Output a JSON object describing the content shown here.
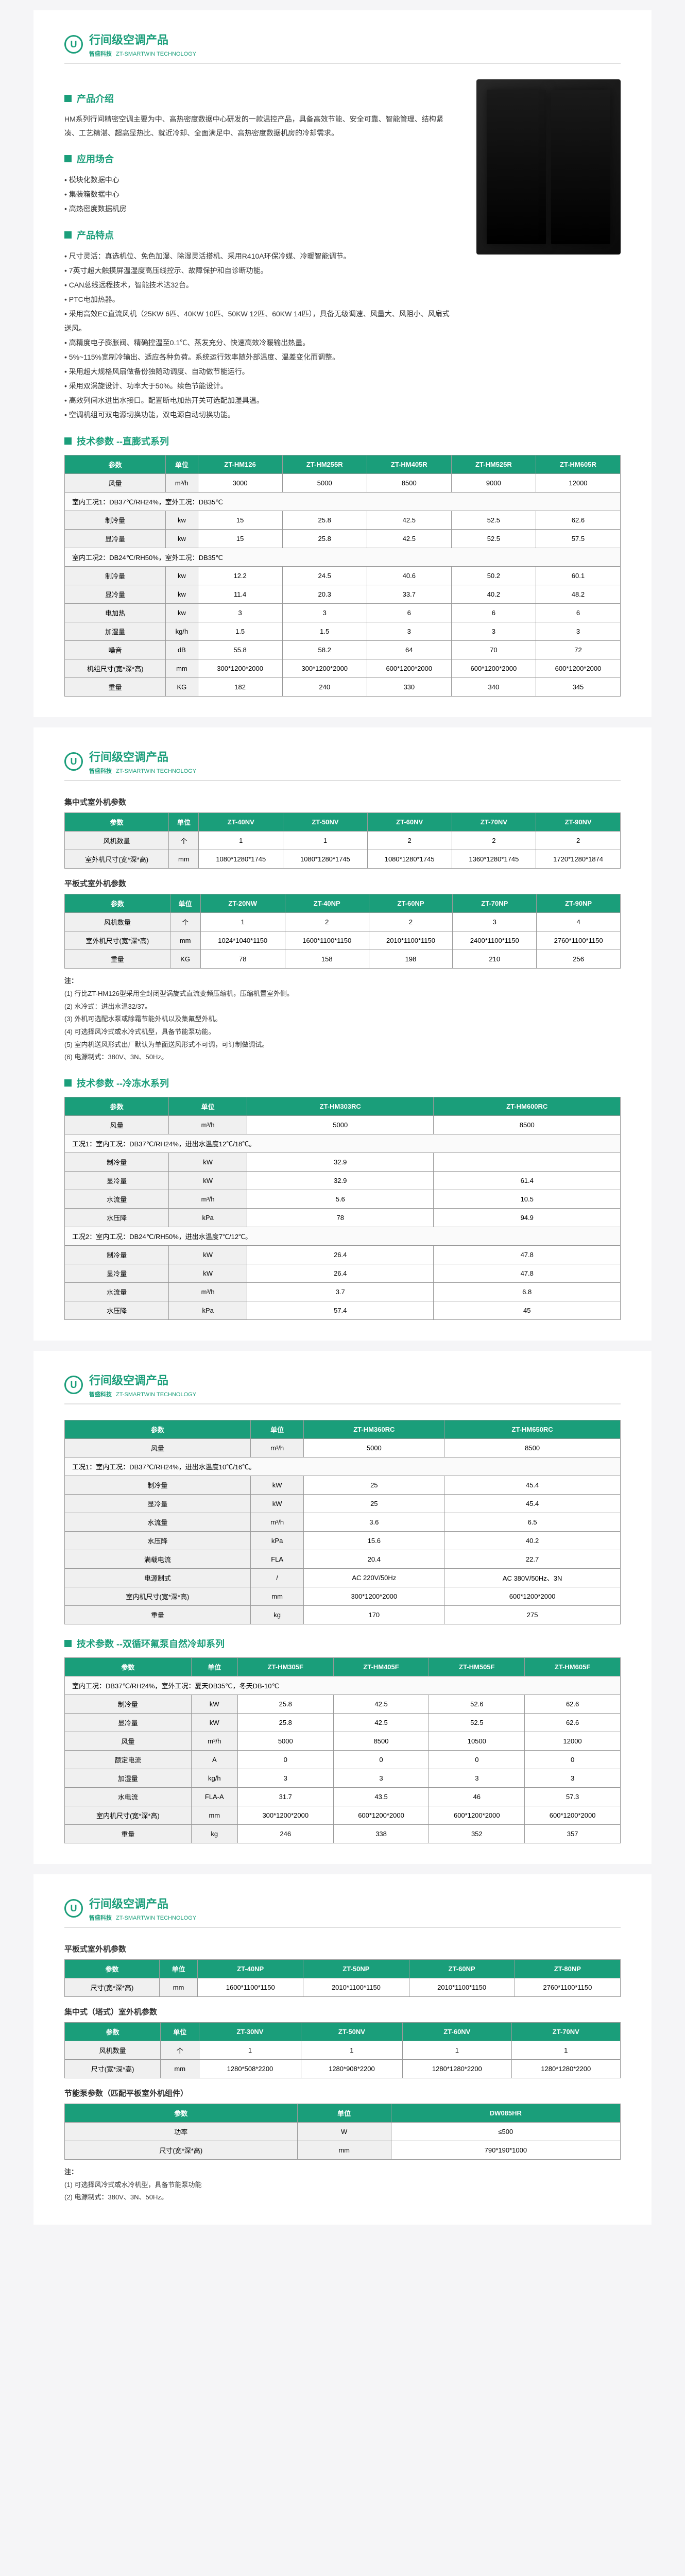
{
  "header": {
    "title": "行间级空调产品",
    "brand_cn": "智盛科技",
    "brand_en": "ZT-SMARTWIN TECHNOLOGY"
  },
  "sections": {
    "intro": {
      "title": "产品介绍",
      "text": "HM系列行间精密空调主要为中、高热密度数据中心研发的一款温控产品，具备高效节能、安全可靠、智能管理、结构紧凑、工艺精湛、超高显热比、就近冷却、全面满足中、高热密度数据机房的冷却需求。"
    },
    "apply": {
      "title": "应用场合",
      "items": [
        "模块化数据中心",
        "集装箱数据中心",
        "高热密度数据机房"
      ]
    },
    "features": {
      "title": "产品特点",
      "items": [
        "尺寸灵活：真选机位、免色加湿、除湿灵活搭机、采用R410A环保冷媒、冷暖智能调节。",
        "7英寸超大触摸屏温湿度高压线控示、故障保护和自诊断功能。",
        "CAN总线远程技术，智能技术达32台。",
        "PTC电加热器。",
        "采用高效EC直流风机（25KW 6匹、40KW 10匹、50KW 12匹、60KW 14匹），具备无级调速、风量大、风阻小、风扇式送风。",
        "高精度电子膨胀阀、精确控温至0.1℃、蒸发充分、快速高效冷暖输出热量。",
        "5%~115%宽制冷输出、适应各种负荷。系统运行效率随外部温度、温差变化而调整。",
        "采用超大规格风扇做备份独随动调度、自动做节能运行。",
        "采用双涡旋设计、功率大于50%。续色节能设计。",
        "高效列间水进出水接口。配置断电加热开关可选配加湿具温。",
        "空调机组可双电源切换功能，双电源自动切换功能。"
      ]
    },
    "spec1": {
      "title": "技术参数 --直膨式系列"
    },
    "spec2": {
      "title": "技术参数 --冷冻水系列"
    },
    "spec3": {
      "title": "技术参数 --双循环氟泵自然冷却系列"
    }
  },
  "table1": {
    "headers": [
      "参数",
      "单位",
      "ZT-HM126",
      "ZT-HM255R",
      "ZT-HM405R",
      "ZT-HM525R",
      "ZT-HM605R"
    ],
    "rows": [
      [
        "风量",
        "m³/h",
        "3000",
        "5000",
        "8500",
        "9000",
        "12000"
      ],
      {
        "cond": "室内工况1：DB37℃/RH24%，室外工况：DB35℃"
      },
      [
        "制冷量",
        "kw",
        "15",
        "25.8",
        "42.5",
        "52.5",
        "62.6"
      ],
      [
        "显冷量",
        "kw",
        "15",
        "25.8",
        "42.5",
        "52.5",
        "57.5"
      ],
      {
        "cond": "室内工况2：DB24℃/RH50%，室外工况：DB35℃"
      },
      [
        "制冷量",
        "kw",
        "12.2",
        "24.5",
        "40.6",
        "50.2",
        "60.1"
      ],
      [
        "显冷量",
        "kw",
        "11.4",
        "20.3",
        "33.7",
        "40.2",
        "48.2"
      ],
      [
        "电加热",
        "kw",
        "3",
        "3",
        "6",
        "6",
        "6"
      ],
      [
        "加湿量",
        "kg/h",
        "1.5",
        "1.5",
        "3",
        "3",
        "3"
      ],
      [
        "噪音",
        "dB",
        "55.8",
        "58.2",
        "64",
        "70",
        "72"
      ],
      [
        "机组尺寸(宽*深*高)",
        "mm",
        "300*1200*2000",
        "300*1200*2000",
        "600*1200*2000",
        "600*1200*2000",
        "600*1200*2000"
      ],
      [
        "重量",
        "KG",
        "182",
        "240",
        "330",
        "340",
        "345"
      ]
    ]
  },
  "outdoor_c": {
    "title": "集中式室外机参数",
    "headers": [
      "参数",
      "单位",
      "ZT-40NV",
      "ZT-50NV",
      "ZT-60NV",
      "ZT-70NV",
      "ZT-90NV"
    ],
    "rows": [
      [
        "风机数量",
        "个",
        "1",
        "1",
        "2",
        "2",
        "2"
      ],
      [
        "室外机尺寸(宽*深*高)",
        "mm",
        "1080*1280*1745",
        "1080*1280*1745",
        "1080*1280*1745",
        "1360*1280*1745",
        "1720*1280*1874"
      ]
    ]
  },
  "outdoor_p": {
    "title": "平板式室外机参数",
    "headers": [
      "参数",
      "单位",
      "ZT-20NW",
      "ZT-40NP",
      "ZT-60NP",
      "ZT-70NP",
      "ZT-90NP"
    ],
    "rows": [
      [
        "风机数量",
        "个",
        "1",
        "2",
        "2",
        "3",
        "4"
      ],
      [
        "室外机尺寸(宽*深*高)",
        "mm",
        "1024*1040*1150",
        "1600*1100*1150",
        "2010*1100*1150",
        "2400*1100*1150",
        "2760*1100*1150"
      ],
      [
        "重量",
        "KG",
        "78",
        "158",
        "198",
        "210",
        "256"
      ]
    ]
  },
  "notes1": {
    "title": "注：",
    "items": [
      "(1) 行比ZT-HM126型采用全封闭型涡旋式直流变频压缩机，压缩机置室外侧。",
      "(2) 水冷式：进出水温32/37。",
      "(3) 外机可选配水泵或除霜节能外机以及集氟型外机。",
      "(4) 可选择风冷式或水冷式机型，具备节能泵功能。",
      "(5) 室内机送风形式出厂默认为单面送风形式不可调，可订制做调试。",
      "(6) 电源制式：380V、3N、50Hz。"
    ]
  },
  "table2": {
    "headers": [
      "参数",
      "单位",
      "ZT-HM303RC",
      "ZT-HM600RC"
    ],
    "rows": [
      [
        "风量",
        "m³/h",
        "5000",
        "8500"
      ],
      {
        "cond": "工况1：室内工况：DB37℃/RH24%，进出水温度12℃/18℃。"
      },
      [
        "制冷量",
        "kW",
        "32.9",
        ""
      ],
      [
        "显冷量",
        "kW",
        "32.9",
        "61.4"
      ],
      [
        "水流量",
        "m³/h",
        "5.6",
        "10.5"
      ],
      [
        "水压降",
        "kPa",
        "78",
        "94.9"
      ],
      {
        "cond": "工况2：室内工况：DB24℃/RH50%，进出水温度7℃/12℃。"
      },
      [
        "制冷量",
        "kW",
        "26.4",
        "47.8"
      ],
      [
        "显冷量",
        "kW",
        "26.4",
        "47.8"
      ],
      [
        "水流量",
        "m³/h",
        "3.7",
        "6.8"
      ],
      [
        "水压降",
        "kPa",
        "57.4",
        "45"
      ]
    ]
  },
  "table3": {
    "headers": [
      "参数",
      "单位",
      "ZT-HM360RC",
      "ZT-HM650RC"
    ],
    "rows": [
      [
        "风量",
        "m³/h",
        "5000",
        "8500"
      ],
      {
        "cond": "工况1：室内工况：DB37℃/RH24%，进出水温度10℃/16℃。"
      },
      [
        "制冷量",
        "kW",
        "25",
        "45.4"
      ],
      [
        "显冷量",
        "kW",
        "25",
        "45.4"
      ],
      [
        "水流量",
        "m³/h",
        "3.6",
        "6.5"
      ],
      [
        "水压降",
        "kPa",
        "15.6",
        "40.2"
      ],
      [
        "满载电流",
        "FLA",
        "20.4",
        "22.7"
      ],
      [
        "电源制式",
        "/",
        "AC 220V/50Hz",
        "AC 380V/50Hz、3N"
      ],
      [
        "室内机尺寸(宽*深*高)",
        "mm",
        "300*1200*2000",
        "600*1200*2000"
      ],
      [
        "重量",
        "kg",
        "170",
        "275"
      ]
    ]
  },
  "table4": {
    "headers": [
      "参数",
      "单位",
      "ZT-HM305F",
      "ZT-HM405F",
      "ZT-HM505F",
      "ZT-HM605F"
    ],
    "rows": [
      {
        "cond": "室内工况：DB37℃/RH24%，室外工况：夏天DB35℃，冬天DB-10℃"
      },
      [
        "制冷量",
        "kW",
        "25.8",
        "42.5",
        "52.6",
        "62.6"
      ],
      [
        "显冷量",
        "kW",
        "25.8",
        "42.5",
        "52.5",
        "62.6"
      ],
      [
        "风量",
        "m³/h",
        "5000",
        "8500",
        "10500",
        "12000"
      ],
      [
        "额定电流",
        "A",
        "0",
        "0",
        "0",
        "0"
      ],
      [
        "加湿量",
        "kg/h",
        "3",
        "3",
        "3",
        "3"
      ],
      [
        "水电流",
        "FLA-A",
        "31.7",
        "43.5",
        "46",
        "57.3"
      ],
      [
        "室内机尺寸(宽*深*高)",
        "mm",
        "300*1200*2000",
        "600*1200*2000",
        "600*1200*2000",
        "600*1200*2000"
      ],
      [
        "重量",
        "kg",
        "246",
        "338",
        "352",
        "357"
      ]
    ]
  },
  "outdoor_p2": {
    "title": "平板式室外机参数",
    "headers": [
      "参数",
      "单位",
      "ZT-40NP",
      "ZT-50NP",
      "ZT-60NP",
      "ZT-80NP"
    ],
    "rows": [
      [
        "尺寸(宽*深*高)",
        "mm",
        "1600*1100*1150",
        "2010*1100*1150",
        "2010*1100*1150",
        "2760*1100*1150"
      ]
    ]
  },
  "outdoor_c2": {
    "title": "集中式（塔式）室外机参数",
    "headers": [
      "参数",
      "单位",
      "ZT-30NV",
      "ZT-50NV",
      "ZT-60NV",
      "ZT-70NV"
    ],
    "rows": [
      [
        "风机数量",
        "个",
        "1",
        "1",
        "1",
        "1"
      ],
      [
        "尺寸(宽*深*高)",
        "mm",
        "1280*508*2200",
        "1280*908*2200",
        "1280*1280*2200",
        "1280*1280*2200"
      ]
    ]
  },
  "energy": {
    "title": "节能泵参数（匹配平板室外机组件）",
    "headers": [
      "参数",
      "单位",
      "DW085HR"
    ],
    "rows": [
      [
        "功率",
        "W",
        "≤500"
      ],
      [
        "尺寸(宽*深*高)",
        "mm",
        "790*190*1000"
      ]
    ]
  },
  "notes2": {
    "title": "注：",
    "items": [
      "(1) 可选择风冷式或水冷机型，具备节能泵功能",
      "(2) 电源制式：380V、3N、50Hz。"
    ]
  }
}
